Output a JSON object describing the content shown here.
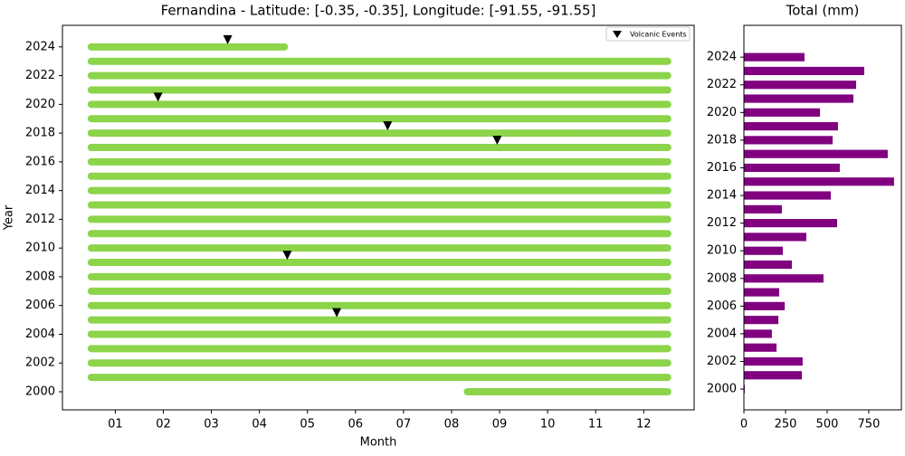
{
  "chart_data": [
    {
      "type": "timeline",
      "title": "Fernandina - Latitude: [-0.35, -0.35], Longitude: [-91.55, -91.55]",
      "xlabel": "Month",
      "ylabel": "Year",
      "xlim": [
        -0.1,
        13.05
      ],
      "ylim": [
        1998.74,
        2025.5
      ],
      "xticks": [
        {
          "value": 1,
          "label": "01"
        },
        {
          "value": 2,
          "label": "02"
        },
        {
          "value": 3,
          "label": "03"
        },
        {
          "value": 4,
          "label": "04"
        },
        {
          "value": 5,
          "label": "05"
        },
        {
          "value": 6,
          "label": "06"
        },
        {
          "value": 7,
          "label": "07"
        },
        {
          "value": 8,
          "label": "08"
        },
        {
          "value": 9,
          "label": "09"
        },
        {
          "value": 10,
          "label": "10"
        },
        {
          "value": 11,
          "label": "11"
        },
        {
          "value": 12,
          "label": "12"
        }
      ],
      "yticks": [
        2000,
        2002,
        2004,
        2006,
        2008,
        2010,
        2012,
        2014,
        2016,
        2018,
        2020,
        2022,
        2024
      ],
      "color": "#8cd44a",
      "y": [
        2000,
        2001,
        2002,
        2003,
        2004,
        2005,
        2006,
        2007,
        2008,
        2009,
        2010,
        2011,
        2012,
        2013,
        2014,
        2015,
        2016,
        2017,
        2018,
        2019,
        2020,
        2021,
        2022,
        2023,
        2024
      ],
      "start": [
        8.33,
        0.5,
        0.5,
        0.5,
        0.5,
        0.5,
        0.5,
        0.5,
        0.5,
        0.5,
        0.5,
        0.5,
        0.5,
        0.5,
        0.5,
        0.5,
        0.5,
        0.5,
        0.5,
        0.5,
        0.5,
        0.5,
        0.5,
        0.5,
        0.5
      ],
      "end": [
        12.5,
        12.5,
        12.5,
        12.5,
        12.5,
        12.5,
        12.5,
        12.5,
        12.5,
        12.5,
        12.5,
        12.5,
        12.5,
        12.5,
        12.5,
        12.5,
        12.5,
        12.5,
        12.5,
        12.5,
        12.5,
        12.5,
        12.5,
        12.5,
        4.52
      ],
      "series": [
        {
          "name": "Volcanic Events",
          "color": "#000000",
          "x": [
            3.34,
            1.89,
            6.67,
            8.95,
            4.58,
            5.61
          ],
          "y": [
            2024.5,
            2020.5,
            2018.5,
            2017.5,
            2009.5,
            2005.5
          ]
        }
      ],
      "legend": "upper right"
    },
    {
      "type": "barh",
      "title": "Total (mm)",
      "xlim": [
        0,
        946
      ],
      "ylim": [
        1998.5,
        2026.3
      ],
      "xticks": [
        0,
        250,
        500,
        750
      ],
      "yticks": [
        2000,
        2002,
        2004,
        2006,
        2008,
        2010,
        2012,
        2014,
        2016,
        2018,
        2020,
        2022,
        2024
      ],
      "color": "#800080",
      "y": [
        2000,
        2001,
        2002,
        2003,
        2004,
        2005,
        2006,
        2007,
        2008,
        2009,
        2010,
        2011,
        2012,
        2013,
        2014,
        2015,
        2016,
        2017,
        2018,
        2019,
        2020,
        2021,
        2022,
        2023,
        2024
      ],
      "values": [
        5,
        348,
        353,
        196,
        168,
        207,
        245,
        212,
        478,
        288,
        234,
        375,
        560,
        228,
        522,
        902,
        576,
        864,
        533,
        565,
        457,
        658,
        674,
        723,
        364
      ]
    }
  ]
}
